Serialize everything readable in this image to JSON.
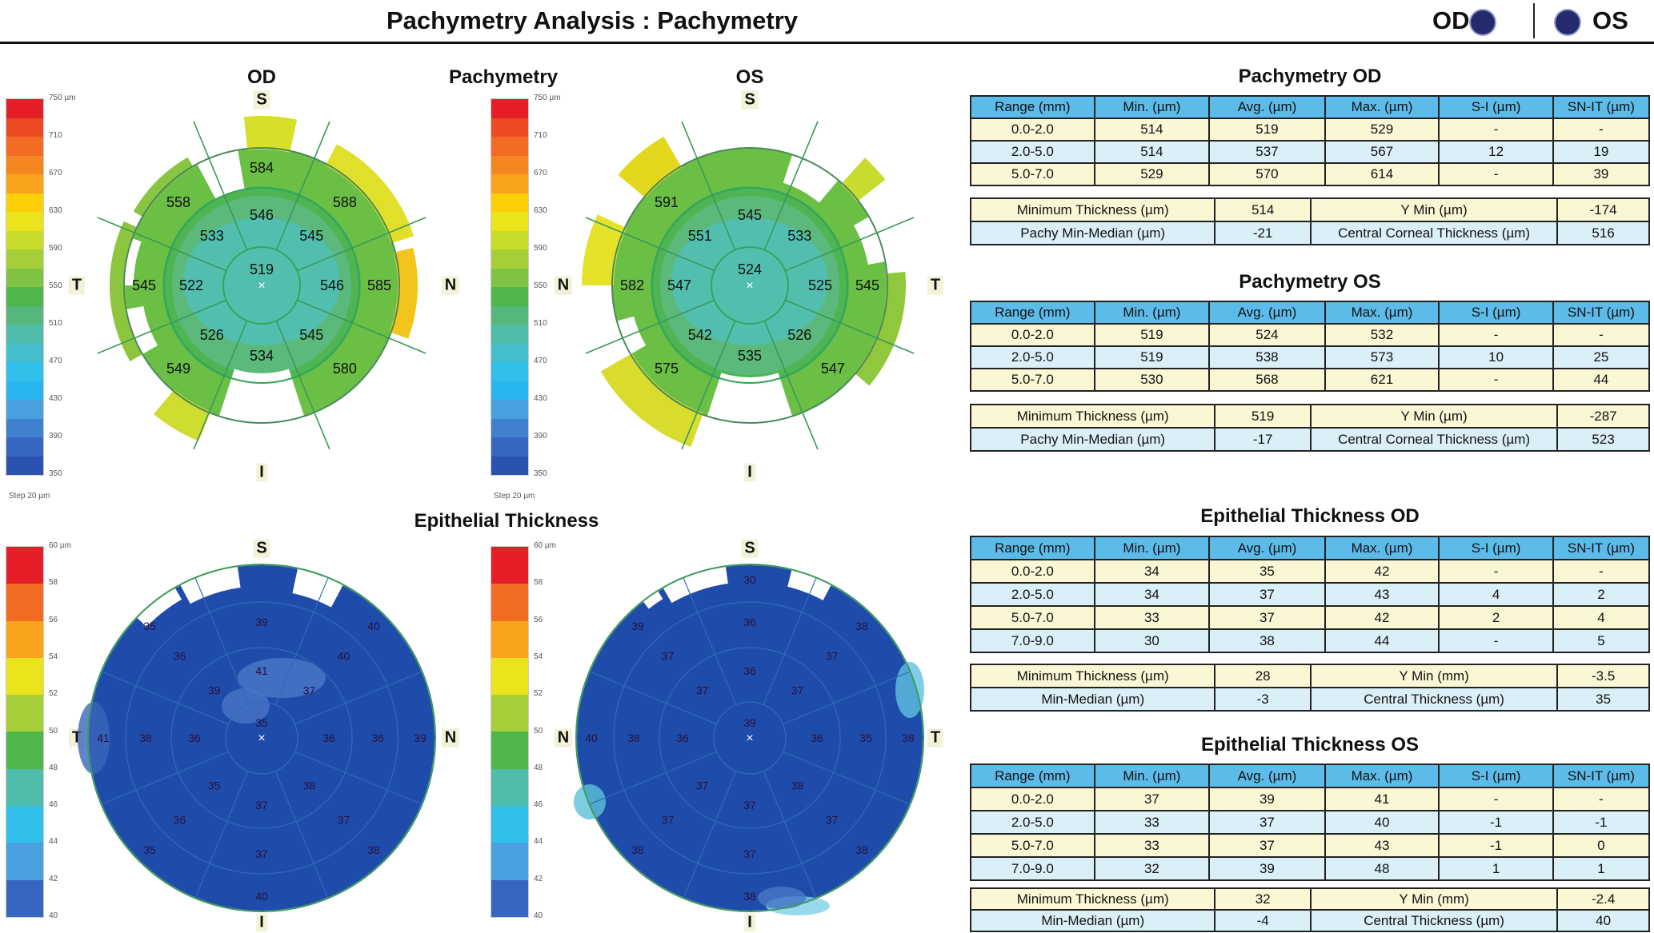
{
  "header": {
    "title": "Pachymetry Analysis : Pachymetry",
    "od_label": "OD",
    "os_label": "OS",
    "eye_dot_color": "#242a6e"
  },
  "maps": {
    "od_heading": "OD",
    "pachymetry_heading": "Pachymetry",
    "os_heading": "OS",
    "epithelial_heading": "Epithelial Thickness",
    "pachy_scale": {
      "labels": [
        "750 µm",
        "710",
        "670",
        "630",
        "590",
        "550",
        "510",
        "470",
        "430",
        "390",
        "350"
      ],
      "step": "Step 20 µm"
    },
    "epi_scale": {
      "labels": [
        "60 µm",
        "58",
        "56",
        "54",
        "52",
        "50",
        "48",
        "46",
        "44",
        "42",
        "40"
      ]
    },
    "directions": {
      "s": "S",
      "i": "I",
      "t": "T",
      "n": "N"
    },
    "sector_order": [
      "top",
      "top-right",
      "right",
      "bottom-right",
      "bottom",
      "bottom-left",
      "left",
      "top-left"
    ],
    "pachy_od": {
      "center": "519",
      "ring1": [
        "546",
        "545",
        "546",
        "545",
        "534",
        "526",
        "522",
        "533"
      ],
      "ring2": [
        "584",
        "588",
        "585",
        "580",
        null,
        "549",
        "545",
        "558"
      ]
    },
    "pachy_os": {
      "center": "524",
      "ring1": [
        "545",
        "533",
        "525",
        "526",
        "535",
        "542",
        "547",
        "551"
      ],
      "ring2": [
        null,
        null,
        "545",
        "547",
        null,
        "575",
        "582",
        "591"
      ]
    },
    "epi_od": {
      "center": "35",
      "ring1": [
        "41",
        "37",
        "36",
        "38",
        "37",
        "35",
        "36",
        "39"
      ],
      "ring2": [
        "39",
        "40",
        "36",
        "37",
        "37",
        "36",
        "38",
        "36"
      ],
      "ring3": [
        null,
        "40",
        "39",
        "38",
        "40",
        "35",
        "41",
        "35"
      ]
    },
    "epi_os": {
      "center": "39",
      "ring1": [
        "36",
        "37",
        "36",
        "38",
        "37",
        "37",
        "36",
        "37"
      ],
      "ring2": [
        "36",
        "37",
        "35",
        "37",
        "37",
        "37",
        "38",
        "37"
      ],
      "ring3": [
        "30",
        "38",
        "38",
        "38",
        "38",
        "38",
        "40",
        "39"
      ]
    }
  },
  "tables": {
    "columns": [
      "Range (mm)",
      "Min. (µm)",
      "Avg. (µm)",
      "Max. (µm)",
      "S-I (µm)",
      "SN-IT (µm)"
    ],
    "pachy_od": {
      "title": "Pachymetry OD",
      "rows": [
        [
          "0.0-2.0",
          "514",
          "519",
          "529",
          "-",
          "-"
        ],
        [
          "2.0-5.0",
          "514",
          "537",
          "567",
          "12",
          "19"
        ],
        [
          "5.0-7.0",
          "529",
          "570",
          "614",
          "-",
          "39"
        ]
      ],
      "summary": [
        [
          "Minimum Thickness (µm)",
          "514",
          "Y Min (µm)",
          "-174"
        ],
        [
          "Pachy Min-Median (µm)",
          "-21",
          "Central Corneal Thickness (µm)",
          "516"
        ]
      ]
    },
    "pachy_os": {
      "title": "Pachymetry OS",
      "rows": [
        [
          "0.0-2.0",
          "519",
          "524",
          "532",
          "-",
          "-"
        ],
        [
          "2.0-5.0",
          "519",
          "538",
          "573",
          "10",
          "25"
        ],
        [
          "5.0-7.0",
          "530",
          "568",
          "621",
          "-",
          "44"
        ]
      ],
      "summary": [
        [
          "Minimum Thickness (µm)",
          "519",
          "Y Min (µm)",
          "-287"
        ],
        [
          "Pachy Min-Median (µm)",
          "-17",
          "Central Corneal Thickness (µm)",
          "523"
        ]
      ]
    },
    "epi_od": {
      "title": "Epithelial Thickness OD",
      "rows": [
        [
          "0.0-2.0",
          "34",
          "35",
          "42",
          "-",
          "-"
        ],
        [
          "2.0-5.0",
          "34",
          "37",
          "43",
          "4",
          "2"
        ],
        [
          "5.0-7.0",
          "33",
          "37",
          "42",
          "2",
          "4"
        ],
        [
          "7.0-9.0",
          "30",
          "38",
          "44",
          "-",
          "5"
        ]
      ],
      "summary": [
        [
          "Minimum Thickness (µm)",
          "28",
          "Y Min (mm)",
          "-3.5"
        ],
        [
          "Min-Median (µm)",
          "-3",
          "Central Thickness (µm)",
          "35"
        ]
      ]
    },
    "epi_os": {
      "title": "Epithelial Thickness OS",
      "rows": [
        [
          "0.0-2.0",
          "37",
          "39",
          "41",
          "-",
          "-"
        ],
        [
          "2.0-5.0",
          "33",
          "37",
          "40",
          "-1",
          "-1"
        ],
        [
          "5.0-7.0",
          "33",
          "37",
          "43",
          "-1",
          "0"
        ],
        [
          "7.0-9.0",
          "32",
          "39",
          "48",
          "1",
          "1"
        ]
      ],
      "summary": [
        [
          "Minimum Thickness (µm)",
          "32",
          "Y Min (mm)",
          "-2.4"
        ],
        [
          "Min-Median (µm)",
          "-4",
          "Central Thickness (µm)",
          "40"
        ]
      ]
    }
  }
}
